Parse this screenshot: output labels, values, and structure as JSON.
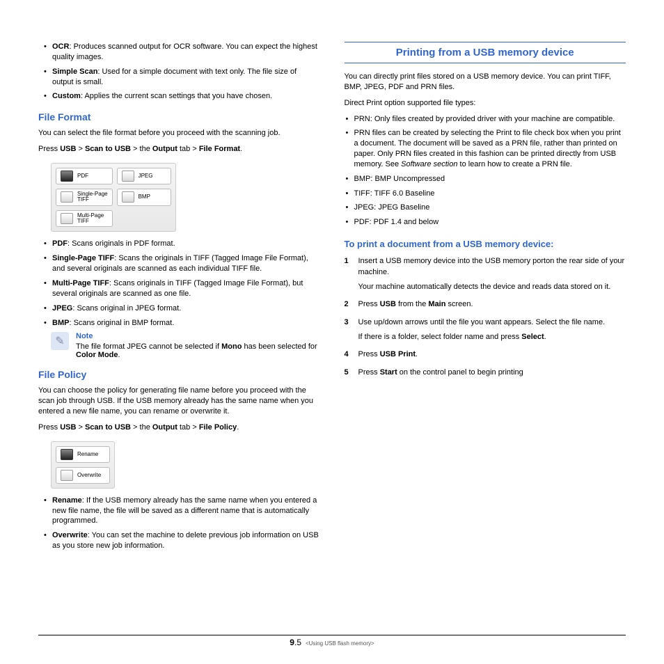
{
  "left": {
    "top_bullets": [
      {
        "term": "OCR",
        "desc": ": Produces scanned output for OCR software. You can expect the highest quality images."
      },
      {
        "term": "Simple Scan",
        "desc": ": Used for a simple document with text only. The file size of output is small."
      },
      {
        "term": "Custom",
        "desc": ": Applies the current scan settings that you have chosen."
      }
    ],
    "file_format": {
      "heading": "File Format",
      "intro": "You can select the file format before you proceed with the scanning job.",
      "path_prefix": "Press ",
      "path_html": "USB > Scan to USB > the Output tab > File Format",
      "ui_buttons": [
        {
          "label": "PDF",
          "selected": true
        },
        {
          "label": "JPEG",
          "selected": false
        },
        {
          "label": "Single-Page\nTIFF",
          "selected": false
        },
        {
          "label": "BMP",
          "selected": false
        },
        {
          "label": "Multi-Page\nTIFF",
          "selected": false
        }
      ],
      "bullets": [
        {
          "term": "PDF",
          "desc": ": Scans originals in PDF format."
        },
        {
          "term": "Single-Page TIFF",
          "desc": ": Scans the originals in TIFF (Tagged Image File Format), and several originals are scanned as each individual TIFF file."
        },
        {
          "term": "Multi-Page TIFF",
          "desc": ": Scans originals in TIFF (Tagged Image File Format), but several originals are scanned as one file."
        },
        {
          "term": "JPEG",
          "desc": ": Scans original in JPEG format."
        },
        {
          "term": "BMP",
          "desc": ": Scans original in BMP format."
        }
      ],
      "note_title": "Note",
      "note_text_pre": "The file format JPEG cannot be selected if ",
      "note_text_b1": "Mono",
      "note_text_mid": " has been selected for ",
      "note_text_b2": "Color Mode",
      "note_text_post": "."
    },
    "file_policy": {
      "heading": "File Policy",
      "intro": "You can choose the policy for generating file name before you proceed with the scan job through USB. If the USB memory already has the same name when you entered a new file name, you can rename or overwrite it.",
      "ui_buttons": [
        {
          "label": "Rename",
          "selected": true
        },
        {
          "label": "Overwrite",
          "selected": false
        }
      ],
      "bullets": [
        {
          "term": "Rename",
          "desc": ":  If the USB memory already has the same name when you entered a new file name, the file will be saved as a different name that is automatically programmed."
        },
        {
          "term": "Overwrite",
          "desc": ": You can set the machine to delete previous job information on USB as you store new job information."
        }
      ]
    }
  },
  "right": {
    "banner": "Printing from a USB memory device",
    "intro": "You can directly print files stored on a USB memory device. You can print TIFF, BMP, JPEG, PDF and PRN files.",
    "supported_intro": "Direct Print option supported file types:",
    "supported": [
      "PRN: Only files created by provided driver with your machine are compatible.",
      "PRN files can be created by selecting the Print to file check box when you print a document. The document will be saved as a PRN file, rather than printed on paper. Only PRN files created in this fashion can be printed directly from USB memory. See Software section to learn how to create a PRN file.",
      "BMP: BMP Uncompressed",
      "TIFF: TIFF 6.0 Baseline",
      "JPEG: JPEG Baseline",
      "PDF: PDF 1.4 and below"
    ],
    "howto_heading": "To print a document from a USB memory device:",
    "steps": [
      {
        "n": "1",
        "main": "Insert a USB memory device into the USB memory porton the rear side of your machine.",
        "sub": "Your machine automatically detects the device and reads data stored on it."
      },
      {
        "n": "2",
        "main_html": "Press <b>USB</b> from the <b>Main</b> screen."
      },
      {
        "n": "3",
        "main": "Use up/down arrows until the file you want appears. Select the file name.",
        "sub_html": "If there is a folder, select folder name and press <b>Select</b>."
      },
      {
        "n": "4",
        "main_html": "Press <b>USB Print</b>."
      },
      {
        "n": "5",
        "main_html": "Press <b>Start</b> on the control panel to begin printing"
      }
    ]
  },
  "footer": {
    "page_bold": "9",
    "page_rest": ".5",
    "chapter": "<Using USB flash memory>"
  }
}
